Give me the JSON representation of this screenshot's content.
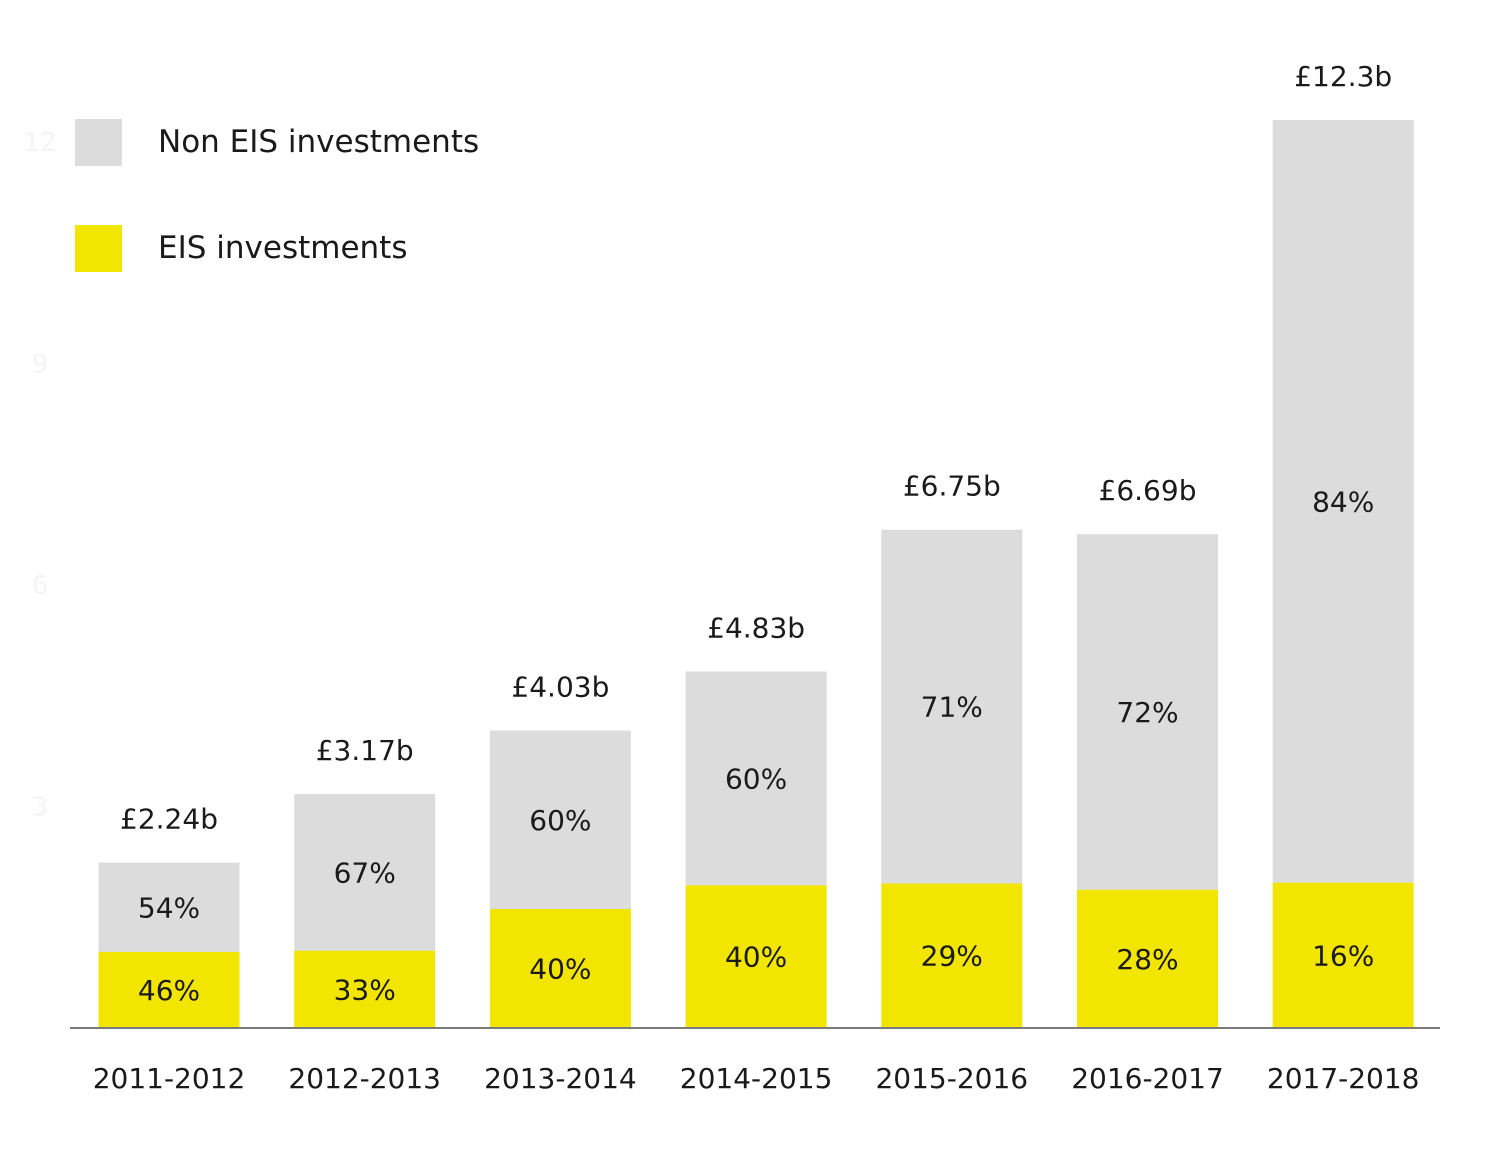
{
  "chart_data": {
    "type": "bar",
    "stacked": true,
    "title": "",
    "xlabel": "",
    "ylabel": "",
    "ylim": [
      0,
      12.3
    ],
    "grid": false,
    "legend_position": "top-left",
    "y_ticks": [
      "3",
      "6",
      "9",
      "12"
    ],
    "categories": [
      "2011-2012",
      "2012-2013",
      "2013-2014",
      "2014-2015",
      "2015-2016",
      "2016-2017",
      "2017-2018"
    ],
    "totals": [
      2.24,
      3.17,
      4.03,
      4.83,
      6.75,
      6.69,
      12.3
    ],
    "total_labels": [
      "£2.24b",
      "£3.17b",
      "£4.03b",
      "£4.83b",
      "£6.75b",
      "£6.69b",
      "£12.3b"
    ],
    "series": [
      {
        "name": "EIS investments",
        "color": "#f2e500",
        "percent": [
          46,
          33,
          40,
          40,
          29,
          28,
          16
        ],
        "labels": [
          "46%",
          "33%",
          "40%",
          "40%",
          "29%",
          "28%",
          "16%"
        ]
      },
      {
        "name": "Non EIS investments",
        "color": "#dcdcdc",
        "percent": [
          54,
          67,
          60,
          60,
          71,
          72,
          84
        ],
        "labels": [
          "54%",
          "67%",
          "60%",
          "60%",
          "71%",
          "72%",
          "84%"
        ]
      }
    ]
  }
}
